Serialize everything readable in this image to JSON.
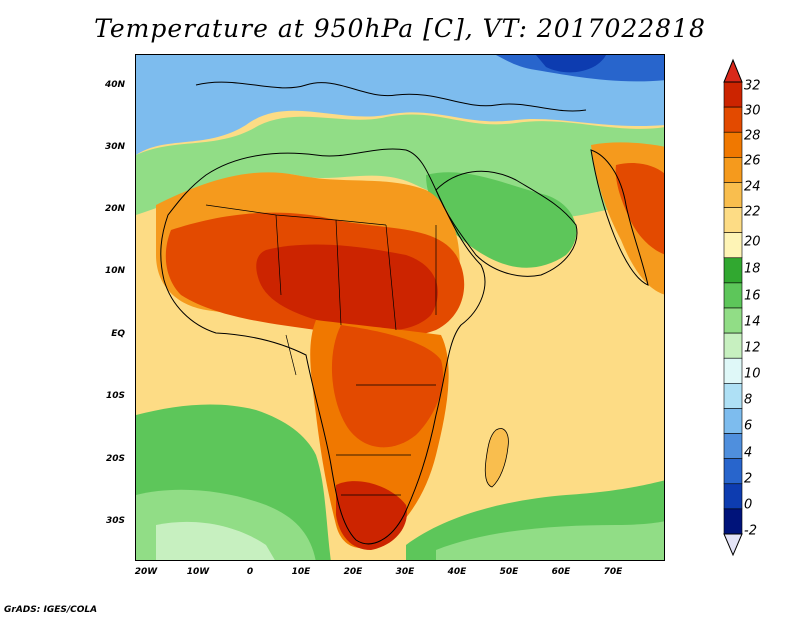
{
  "title": "Temperature at 950hPa [C], VT: 2017022818",
  "credit": "GrADS: IGES/COLA",
  "map": {
    "region": "Africa, Middle East, Indian Ocean",
    "lon_range": [
      -23,
      80
    ],
    "lat_range": [
      -36,
      45
    ],
    "lat_labels": [
      "40N",
      "30N",
      "20N",
      "10N",
      "EQ",
      "10S",
      "20S",
      "30S"
    ],
    "lon_labels": [
      "20W",
      "10W",
      "0",
      "10E",
      "20E",
      "30E",
      "40E",
      "50E",
      "60E",
      "70E"
    ]
  },
  "colorbar": {
    "labels": [
      "32",
      "30",
      "28",
      "26",
      "24",
      "22",
      "20",
      "18",
      "16",
      "14",
      "12",
      "10",
      "8",
      "6",
      "4",
      "2",
      "0",
      "-2"
    ],
    "colors": [
      "#cc2400",
      "#e34a00",
      "#f07800",
      "#f59a1d",
      "#f9be4e",
      "#fddc85",
      "#fef4b6",
      "#31a830",
      "#5dc65a",
      "#91dd86",
      "#c7f0c0",
      "#dff8f8",
      "#aee0f5",
      "#7dbcee",
      "#4f8fdd",
      "#2865cc",
      "#0d3cb0",
      "#00137a"
    ],
    "top_color": "#d9281a",
    "bottom_color": "#e3e3f6"
  }
}
